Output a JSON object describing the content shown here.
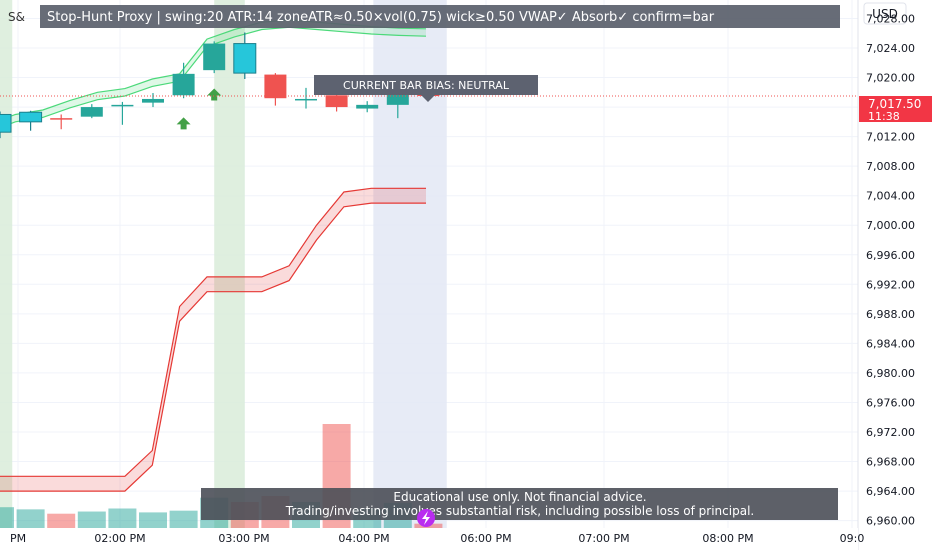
{
  "header": {
    "title": "Stop-Hunt Proxy | swing:20 ATR:14 zoneATR≈0.50×vol(0.75) wick≥0.50 VWAP✓ Absorb✓ confirm=bar",
    "symbol_fragment": "S&"
  },
  "price_axis": {
    "currency": "USD",
    "last_price": "7,017.50",
    "countdown": "11:38"
  },
  "bias_label": "CURRENT BAR BIAS: NEUTRAL",
  "disclaimer": {
    "line1": "Educational use only. Not financial advice.",
    "line2": "Trading/investing involves substantial risk, including possible loss of principal."
  },
  "colors": {
    "bull": "#26a69a",
    "bull_special": "#26c6da",
    "bear": "#ef5350",
    "upper_band": "#4cd97a",
    "lower_band": "#e53935",
    "green_zone": "#d9ecd9",
    "blue_zone": "#e3e7f5",
    "arrow": "#43a047"
  },
  "chart_data": {
    "type": "candlestick",
    "x_ticks": [
      "PM",
      "02:00 PM",
      "03:00 PM",
      "04:00 PM",
      "06:00 PM",
      "07:00 PM",
      "08:00 PM",
      "09:0"
    ],
    "y_ticks": [
      "7,028.00",
      "7,024.00",
      "7,020.00",
      "7,016.00",
      "7,012.00",
      "7,008.00",
      "7,004.00",
      "7,000.00",
      "6,996.00",
      "6,992.00",
      "6,988.00",
      "6,984.00",
      "6,980.00",
      "6,976.00",
      "6,972.00",
      "6,968.00",
      "6,964.00",
      "6,960.00"
    ],
    "ylim": [
      6959,
      7030.5
    ],
    "candles": [
      {
        "o": 7012.6,
        "h": 7015.4,
        "l": 7011.8,
        "c": 7015.0,
        "color": "bull_special"
      },
      {
        "o": 7014.0,
        "h": 7015.5,
        "l": 7012.8,
        "c": 7015.3,
        "color": "bull_special"
      },
      {
        "o": 7014.5,
        "h": 7015.0,
        "l": 7013.0,
        "c": 7014.3,
        "color": "bear"
      },
      {
        "o": 7014.7,
        "h": 7016.4,
        "l": 7014.5,
        "c": 7016.0,
        "color": "bull"
      },
      {
        "o": 7016.1,
        "h": 7016.7,
        "l": 7013.6,
        "c": 7016.3,
        "color": "bull"
      },
      {
        "o": 7016.6,
        "h": 7017.9,
        "l": 7016.0,
        "c": 7017.1,
        "color": "bull"
      },
      {
        "o": 7017.6,
        "h": 7022.0,
        "l": 7017.2,
        "c": 7020.5,
        "color": "bull"
      },
      {
        "o": 7021.0,
        "h": 7024.9,
        "l": 7020.6,
        "c": 7024.6,
        "color": "bull"
      },
      {
        "o": 7024.6,
        "h": 7026.1,
        "l": 7019.8,
        "c": 7020.6,
        "color": "bull_special"
      },
      {
        "o": 7020.4,
        "h": 7020.6,
        "l": 7016.2,
        "c": 7017.2,
        "color": "bear"
      },
      {
        "o": 7017.1,
        "h": 7018.6,
        "l": 7015.8,
        "c": 7017.1,
        "color": "bull"
      },
      {
        "o": 7017.6,
        "h": 7018.3,
        "l": 7015.4,
        "c": 7016.0,
        "color": "bear"
      },
      {
        "o": 7015.8,
        "h": 7016.8,
        "l": 7015.3,
        "c": 7016.3,
        "color": "bull"
      },
      {
        "o": 7016.3,
        "h": 7018.4,
        "l": 7014.5,
        "c": 7018.1,
        "color": "bull"
      },
      {
        "o": 7017.9,
        "h": 7018.3,
        "l": 7017.1,
        "c": 7017.5,
        "color": "bear"
      }
    ],
    "volume": [
      {
        "v": 4.8,
        "color": "bull"
      },
      {
        "v": 4.3,
        "color": "bull"
      },
      {
        "v": 3.3,
        "color": "bear"
      },
      {
        "v": 3.8,
        "color": "bull"
      },
      {
        "v": 4.5,
        "color": "bull"
      },
      {
        "v": 3.6,
        "color": "bull"
      },
      {
        "v": 4.0,
        "color": "bull"
      },
      {
        "v": 7.0,
        "color": "bull"
      },
      {
        "v": 6.0,
        "color": "bear"
      },
      {
        "v": 7.4,
        "color": "bear"
      },
      {
        "v": 6.0,
        "color": "bull"
      },
      {
        "v": 24.0,
        "color": "bear"
      },
      {
        "v": 4.5,
        "color": "bull"
      },
      {
        "v": 5.8,
        "color": "bull"
      },
      {
        "v": 1.0,
        "color": "bear"
      }
    ],
    "volume_max": 30,
    "upper_band": {
      "upper": [
        7013.6,
        7015.0,
        7015.6,
        7016.9,
        7018.0,
        7018.5,
        7019.8,
        7020.5,
        7025.2,
        7026.5,
        7027.5,
        7027.8,
        7027.5,
        7027.2,
        7026.9,
        7026.7,
        7026.6
      ],
      "lower": [
        7012.6,
        7014.0,
        7014.6,
        7015.9,
        7017.0,
        7017.5,
        7018.8,
        7019.5,
        7024.2,
        7025.5,
        7026.5,
        7026.8,
        7026.5,
        7026.2,
        7025.9,
        7025.7,
        7025.6
      ]
    },
    "lower_band": {
      "upper": [
        6966.0,
        6966.0,
        6966.0,
        6966.0,
        6966.0,
        6966.0,
        6969.5,
        6989.0,
        6993.0,
        6993.0,
        6993.0,
        6994.5,
        7000.0,
        7004.5,
        7005.0,
        7005.0,
        7005.0
      ],
      "lower": [
        6964.0,
        6964.0,
        6964.0,
        6964.0,
        6964.0,
        6964.0,
        6967.5,
        6987.0,
        6991.0,
        6991.0,
        6991.0,
        6992.5,
        6998.0,
        7002.5,
        7003.0,
        7003.0,
        7003.0
      ]
    },
    "zones": [
      {
        "type": "green",
        "from": -0.5,
        "to": 0.4
      },
      {
        "type": "green",
        "from": 7.0,
        "to": 8.0
      },
      {
        "type": "blue",
        "from": 12.2,
        "to": 14.6
      }
    ],
    "arrows": [
      {
        "bar": 6,
        "price": 7013.8
      },
      {
        "bar": 7,
        "price": 7017.7
      }
    ],
    "bias_marker_bar": 14
  }
}
